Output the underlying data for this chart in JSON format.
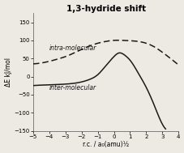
{
  "title": "1,3-hydride shift",
  "xlabel": "r.c. / a₀(amu)½",
  "ylabel": "ΔE kJ/mol",
  "xlim": [
    -5,
    4
  ],
  "ylim": [
    -150,
    175
  ],
  "xticks": [
    -5,
    -4,
    -3,
    -2,
    -1,
    0,
    1,
    2,
    3,
    4
  ],
  "yticks": [
    -150,
    -100,
    -50,
    0,
    50,
    100,
    150
  ],
  "background_color": "#ede9e3",
  "intra_label": "intra-molecular",
  "inter_label": "inter-molecular",
  "title_fontsize": 7.5,
  "axis_fontsize": 5.5,
  "label_fontsize": 5.5,
  "tick_fontsize": 5
}
